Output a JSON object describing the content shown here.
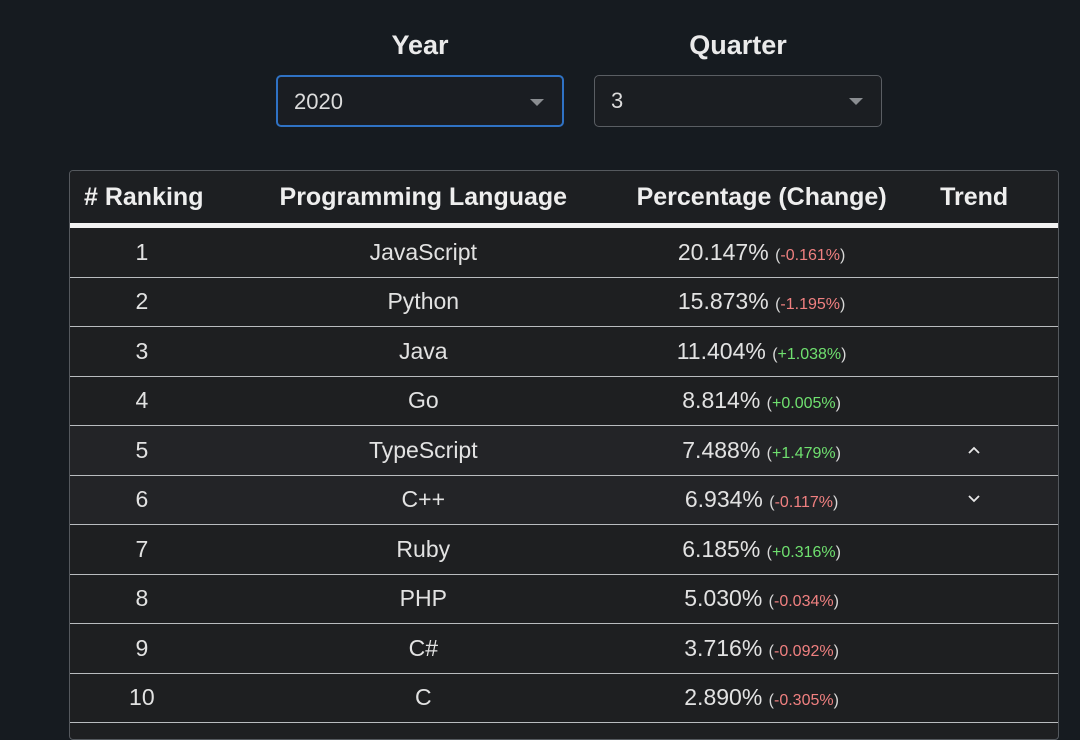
{
  "filters": {
    "year": {
      "label": "Year",
      "value": "2020"
    },
    "quarter": {
      "label": "Quarter",
      "value": "3"
    }
  },
  "table": {
    "headers": [
      "# Ranking",
      "Programming Language",
      "Percentage (Change)",
      "Trend"
    ],
    "rows": [
      {
        "rank": "1",
        "language": "JavaScript",
        "percentage": "20.147%",
        "change": "-0.161%",
        "direction": "neg",
        "trend": ""
      },
      {
        "rank": "2",
        "language": "Python",
        "percentage": "15.873%",
        "change": "-1.195%",
        "direction": "neg",
        "trend": ""
      },
      {
        "rank": "3",
        "language": "Java",
        "percentage": "11.404%",
        "change": "+1.038%",
        "direction": "pos",
        "trend": ""
      },
      {
        "rank": "4",
        "language": "Go",
        "percentage": "8.814%",
        "change": "+0.005%",
        "direction": "pos",
        "trend": ""
      },
      {
        "rank": "5",
        "language": "TypeScript",
        "percentage": "7.488%",
        "change": "+1.479%",
        "direction": "pos",
        "trend": "chevron-up-icon"
      },
      {
        "rank": "6",
        "language": "C++",
        "percentage": "6.934%",
        "change": "-0.117%",
        "direction": "neg",
        "trend": "chevron-down-icon"
      },
      {
        "rank": "7",
        "language": "Ruby",
        "percentage": "6.185%",
        "change": "+0.316%",
        "direction": "pos",
        "trend": ""
      },
      {
        "rank": "8",
        "language": "PHP",
        "percentage": "5.030%",
        "change": "-0.034%",
        "direction": "neg",
        "trend": ""
      },
      {
        "rank": "9",
        "language": "C#",
        "percentage": "3.716%",
        "change": "-0.092%",
        "direction": "neg",
        "trend": ""
      },
      {
        "rank": "10",
        "language": "C",
        "percentage": "2.890%",
        "change": "-0.305%",
        "direction": "neg",
        "trend": ""
      }
    ]
  },
  "colors": {
    "negative": "#f08080",
    "positive": "#6fe06f",
    "focus": "#2f72c4"
  }
}
